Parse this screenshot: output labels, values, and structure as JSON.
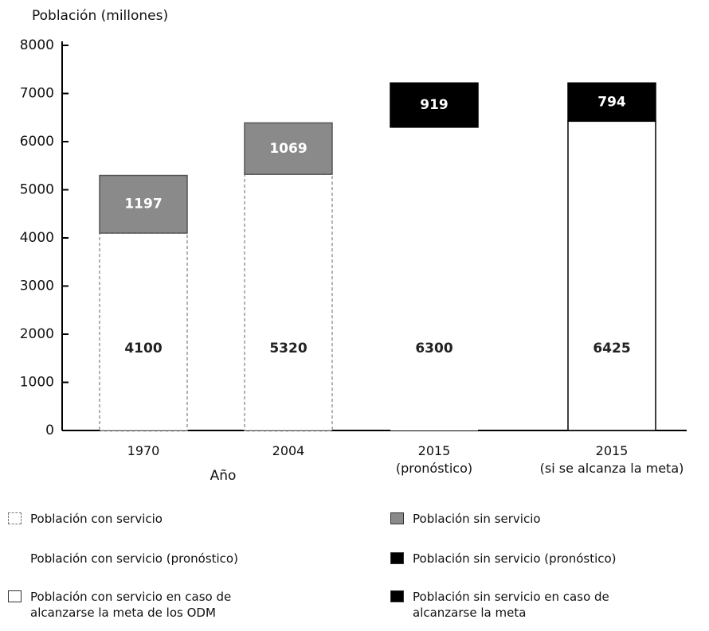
{
  "chart_data": {
    "type": "bar",
    "stacked": true,
    "ylabel": "Población (millones)",
    "xlabel": "Año",
    "categories": [
      "1970",
      "2004",
      "2015\n(pronóstico)",
      "2015\n(si se alcanza la meta)"
    ],
    "series": [
      {
        "name": "Población con servicio",
        "color": "#ffffff",
        "values": [
          4100,
          5320,
          null,
          null
        ]
      },
      {
        "name": "Población con servicio (pronóstico)",
        "color": "#ffffff",
        "values": [
          null,
          null,
          6300,
          null
        ]
      },
      {
        "name": "Población con servicio en caso de\nalcanzarse la meta de los ODM",
        "color": "#ffffff",
        "values": [
          null,
          null,
          null,
          6425
        ]
      },
      {
        "name": "Población sin servicio",
        "color": "#8a8a8a",
        "values": [
          1197,
          1069,
          null,
          null
        ]
      },
      {
        "name": "Población sin servicio (pronóstico)",
        "color": "#000000",
        "values": [
          null,
          null,
          919,
          null
        ]
      },
      {
        "name": "Población sin servicio en caso de\nalcanzarse la meta",
        "color": "#000000",
        "values": [
          null,
          null,
          null,
          794
        ]
      }
    ],
    "ylim": [
      0,
      8000
    ],
    "yticks": [
      0,
      1000,
      2000,
      3000,
      4000,
      5000,
      6000,
      7000,
      8000
    ]
  }
}
